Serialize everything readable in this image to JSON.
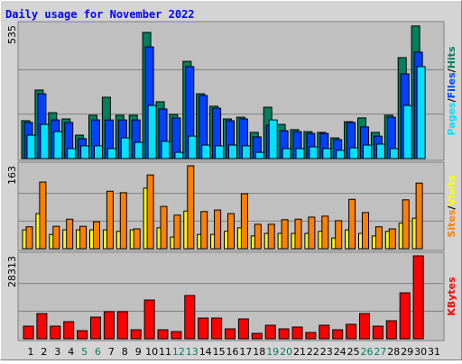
{
  "title": "Daily usage for November 2022",
  "chart_data": [
    {
      "type": "bar",
      "ylim": [
        0,
        535
      ],
      "yticks": [
        535
      ],
      "grid": true,
      "legend_separator": "/",
      "series": [
        {
          "name": "Hits",
          "color": "#00805c",
          "values": [
            152,
            275,
            184,
            159,
            94,
            174,
            246,
            174,
            174,
            506,
            228,
            177,
            390,
            260,
            210,
            159,
            166,
            105,
            206,
            137,
            116,
            108,
            105,
            83,
            148,
            163,
            105,
            174,
            405,
            532,
            0
          ]
        },
        {
          "name": "Files",
          "color": "#0040ff",
          "values": [
            145,
            260,
            155,
            145,
            80,
            155,
            155,
            155,
            155,
            448,
            199,
            163,
            369,
            253,
            202,
            152,
            159,
            87,
            134,
            112,
            108,
            101,
            101,
            76,
            145,
            127,
            90,
            166,
            340,
            427,
            0
          ]
        },
        {
          "name": "Pages",
          "color": "#00e0ff",
          "values": [
            94,
            137,
            108,
            40,
            51,
            51,
            40,
            83,
            65,
            213,
            69,
            25,
            90,
            54,
            51,
            54,
            51,
            25,
            155,
            40,
            40,
            47,
            40,
            33,
            43,
            54,
            58,
            40,
            213,
            369,
            0
          ]
        }
      ]
    },
    {
      "type": "bar",
      "ylim": [
        0,
        163
      ],
      "yticks": [
        163
      ],
      "grid": true,
      "legend_separator": "/",
      "series": [
        {
          "name": "Visits",
          "color": "#ffff00",
          "values": [
            37,
            69,
            28,
            37,
            37,
            37,
            37,
            34,
            37,
            119,
            41,
            23,
            74,
            28,
            28,
            34,
            41,
            25,
            30,
            30,
            30,
            30,
            34,
            21,
            37,
            30,
            25,
            34,
            50,
            60,
            0
          ]
        },
        {
          "name": "Sites",
          "color": "#ff8000",
          "values": [
            43,
            131,
            44,
            58,
            44,
            53,
            113,
            110,
            39,
            145,
            83,
            66,
            163,
            73,
            76,
            69,
            108,
            48,
            48,
            57,
            58,
            62,
            64,
            55,
            97,
            71,
            43,
            39,
            96,
            129,
            0
          ]
        }
      ]
    },
    {
      "type": "bar",
      "ylim": [
        0,
        28313
      ],
      "yticks": [
        28313
      ],
      "grid": true,
      "categories": [
        "1",
        "2",
        "3",
        "4",
        "5",
        "6",
        "7",
        "8",
        "9",
        "10",
        "11",
        "12",
        "13",
        "14",
        "15",
        "16",
        "17",
        "18",
        "19",
        "20",
        "21",
        "22",
        "23",
        "24",
        "25",
        "26",
        "27",
        "28",
        "29",
        "30",
        "31"
      ],
      "category_colors": [
        "#000000",
        "#000000",
        "#000000",
        "#000000",
        "#008060",
        "#008060",
        "#000000",
        "#000000",
        "#000000",
        "#000000",
        "#000000",
        "#008060",
        "#008060",
        "#000000",
        "#000000",
        "#000000",
        "#000000",
        "#000000",
        "#008060",
        "#008060",
        "#000000",
        "#000000",
        "#000000",
        "#000000",
        "#000000",
        "#008060",
        "#008060",
        "#000000",
        "#000000",
        "#000000",
        "#000000"
      ],
      "series": [
        {
          "name": "KBytes",
          "color": "#ff0000",
          "values": [
            4308,
            8617,
            4308,
            5847,
            2770,
            7386,
            9232,
            9232,
            3078,
            13233,
            3078,
            2462,
            14772,
            7078,
            7078,
            3385,
            6770,
            1846,
            4616,
            3385,
            4001,
            2154,
            4616,
            3078,
            4924,
            8617,
            4308,
            6155,
            15695,
            28313,
            0
          ]
        }
      ]
    }
  ]
}
